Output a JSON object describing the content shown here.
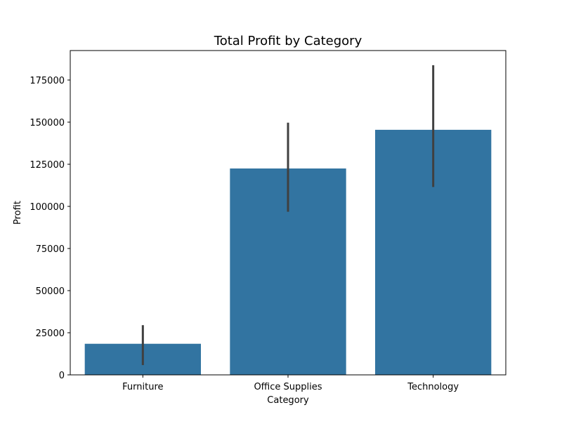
{
  "chart_data": {
    "type": "bar",
    "title": "Total Profit by Category",
    "xlabel": "Category",
    "ylabel": "Profit",
    "categories": [
      "Furniture",
      "Office Supplies",
      "Technology"
    ],
    "values": [
      18451,
      122491,
      145455
    ],
    "error_bars": [
      {
        "low": 5800,
        "high": 29500
      },
      {
        "low": 96800,
        "high": 149700
      },
      {
        "low": 111500,
        "high": 183800
      }
    ],
    "ylim": [
      0,
      192500
    ],
    "yticks": [
      0,
      25000,
      50000,
      75000,
      100000,
      125000,
      150000,
      175000
    ],
    "ytick_labels": [
      "0",
      "25000",
      "50000",
      "75000",
      "100000",
      "125000",
      "150000",
      "175000"
    ],
    "grid": false,
    "colors": {
      "bar": "#3274a1",
      "error_bar": "#404040",
      "axes": "#000000"
    }
  }
}
